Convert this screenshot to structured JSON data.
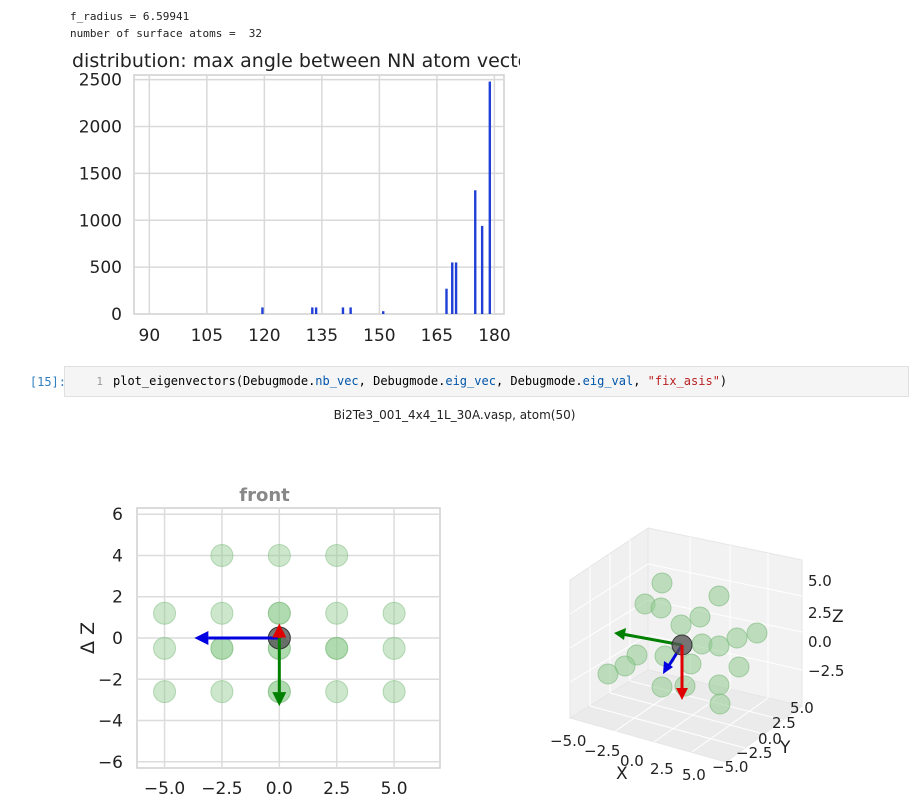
{
  "output": {
    "line1": "f_radius = 6.59941",
    "line2": "number of surface atoms =  32"
  },
  "cell": {
    "prompt": "[15]:",
    "line_number": "1",
    "code_func": "plot_eigenvectors(Debugmode.",
    "code_a1": "nb_vec",
    "code_s1": ", Debugmode.",
    "code_a2": "eig_vec",
    "code_s2": ", Debugmode.",
    "code_a3": "eig_val",
    "code_s3": ", ",
    "code_str": "\"fix_asis\"",
    "code_end": ")"
  },
  "figure_title": "Bi2Te3_001_4x4_1L_30A.vasp, atom(50)",
  "chart_data": [
    {
      "type": "bar",
      "title": "distribution: max angle between NN atom vectors",
      "xlabel": "",
      "ylabel": "",
      "xlim": [
        86,
        182.5
      ],
      "ylim": [
        0,
        2550
      ],
      "xticks": [
        "90",
        "105",
        "120",
        "135",
        "150",
        "165",
        "180"
      ],
      "yticks": [
        "0",
        "500",
        "1000",
        "1500",
        "2000",
        "2500"
      ],
      "x": [
        119.5,
        132.5,
        133.5,
        140.5,
        142.5,
        151,
        167.5,
        169,
        170,
        175,
        176.8,
        178.8
      ],
      "values": [
        70,
        70,
        70,
        70,
        70,
        30,
        270,
        550,
        550,
        1320,
        940,
        2480
      ],
      "color": "#1f3fd6",
      "grid": true
    },
    {
      "type": "scatter",
      "title": "front",
      "xlabel": "",
      "ylabel": "Δ Z",
      "xlim": [
        -6.2,
        7.0
      ],
      "ylim": [
        -6.3,
        6.3
      ],
      "xticks": [
        "−5.0",
        "−2.5",
        "0.0",
        "2.5",
        "5.0"
      ],
      "yticks": [
        "6",
        "4",
        "2",
        "0",
        "−2",
        "−4",
        "−6"
      ],
      "points": [
        [
          -2.5,
          4
        ],
        [
          0,
          4
        ],
        [
          2.5,
          4
        ],
        [
          -5,
          1.2
        ],
        [
          -2.5,
          1.2
        ],
        [
          0,
          1.2
        ],
        [
          2.5,
          1.2
        ],
        [
          5,
          1.2
        ],
        [
          -5,
          -0.5
        ],
        [
          -2.5,
          -0.5
        ],
        [
          0,
          -0.5
        ],
        [
          2.5,
          -0.5
        ],
        [
          5,
          -0.5
        ],
        [
          -2.5,
          -0.5
        ],
        [
          0,
          -0.5
        ],
        [
          2.5,
          -0.5
        ],
        [
          -5,
          -2.6
        ],
        [
          -2.5,
          -2.6
        ],
        [
          0,
          -2.6
        ],
        [
          2.5,
          -2.6
        ],
        [
          5,
          -2.6
        ],
        [
          0,
          -2.6
        ],
        [
          0,
          1.2
        ]
      ],
      "center_atom": [
        0,
        0
      ],
      "arrows": [
        {
          "color": "#0000e0",
          "dx": -3.7,
          "dy": 0
        },
        {
          "color": "#008000",
          "dx": 0,
          "dy": -3.3
        },
        {
          "color": "#e00000",
          "dx": 0,
          "dy": 0.7
        }
      ],
      "point_color": "#8fca8f",
      "grid": true
    },
    {
      "type": "scatter",
      "title": "",
      "xlabel": "X",
      "ylabel": "Y",
      "zlabel": "Z",
      "x_ticks": [
        "−5.0",
        "−2.5",
        "0.0",
        "2.5",
        "5.0"
      ],
      "y_ticks": [
        "−5.0",
        "−2.5",
        "0.0",
        "2.5",
        "5.0"
      ],
      "z_ticks": [
        "5.0",
        "2.5",
        "0.0",
        "−2.5"
      ],
      "grid": true
    }
  ]
}
